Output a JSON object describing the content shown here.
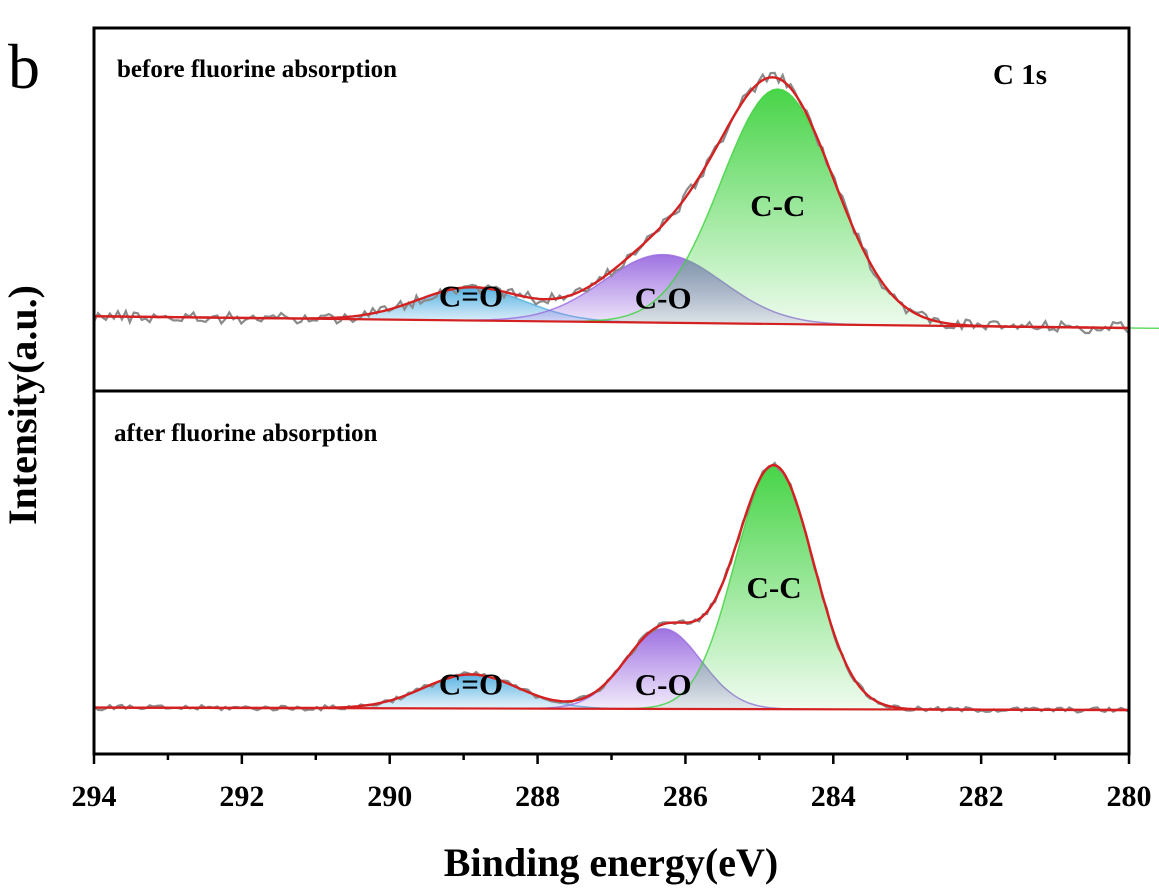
{
  "panel_letter": "b",
  "chart_data": {
    "type": "line",
    "title": "",
    "xlabel": "Binding energy(eV)",
    "ylabel": "Intensity(a.u.)",
    "xlim": [
      294,
      280
    ],
    "x_reversed": true,
    "x_ticks": [
      "294",
      "292",
      "290",
      "288",
      "286",
      "284",
      "282",
      "280"
    ],
    "y_ticks_shown": false,
    "element_label": "C 1s",
    "colors": {
      "raw_spectrum": "#8a8a8a",
      "envelope_fit": "#d42020",
      "baseline": "#d42020",
      "C-C": "#3ed23e",
      "C-O": "#9a6be0",
      "C=O": "#4faee0"
    },
    "panels": [
      {
        "label": "before fluorine absorption",
        "y_range": [
          0,
          1.1
        ],
        "baseline": [
          0.05,
          0.0
        ],
        "peaks": [
          {
            "name": "C=O",
            "center": 288.9,
            "fwhm": 1.7,
            "height": 0.14
          },
          {
            "name": "C-O",
            "center": 286.3,
            "fwhm": 1.9,
            "height": 0.29
          },
          {
            "name": "C-C",
            "center": 284.75,
            "fwhm": 1.8,
            "height": 1.0
          }
        ]
      },
      {
        "label": "after fluorine absorption",
        "y_range": [
          0,
          1.1
        ],
        "baseline": [
          0.01,
          0.0
        ],
        "peaks": [
          {
            "name": "C=O",
            "center": 288.9,
            "fwhm": 1.5,
            "height": 0.14
          },
          {
            "name": "C-O",
            "center": 286.3,
            "fwhm": 1.2,
            "height": 0.33
          },
          {
            "name": "C-C",
            "center": 284.8,
            "fwhm": 1.25,
            "height": 1.0
          }
        ]
      }
    ]
  }
}
